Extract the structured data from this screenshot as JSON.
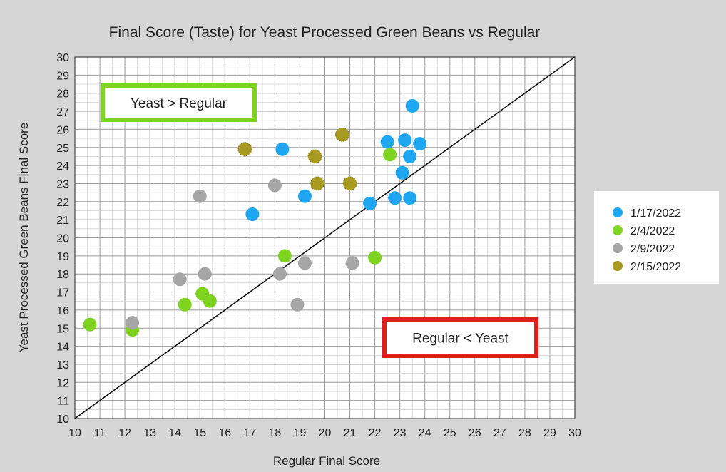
{
  "chart_data": {
    "type": "scatter",
    "title": "Final Score (Taste) for Yeast Processed Green Beans vs Regular",
    "xlabel": "Regular Final Score",
    "ylabel": "Yeast Processed Green Beans Final Score",
    "xlim": [
      10,
      30
    ],
    "ylim": [
      10,
      30
    ],
    "xticks": [
      10,
      11,
      12,
      13,
      14,
      15,
      16,
      17,
      18,
      19,
      20,
      21,
      22,
      23,
      24,
      25,
      26,
      27,
      28,
      29,
      30
    ],
    "yticks": [
      10,
      11,
      12,
      13,
      14,
      15,
      16,
      17,
      18,
      19,
      20,
      21,
      22,
      23,
      24,
      25,
      26,
      27,
      28,
      29,
      30
    ],
    "minor_grid_step": 0.5,
    "grid": true,
    "legend_position": "right",
    "reference_line": {
      "from": [
        10,
        10
      ],
      "to": [
        30,
        30
      ]
    },
    "annotations": [
      {
        "text": "Yeast > Regular",
        "color": "#7ed321"
      },
      {
        "text": "Regular < Yeast",
        "color": "#e02020"
      }
    ],
    "series": [
      {
        "name": "1/17/2022",
        "color": "#1ea6f0",
        "points": [
          [
            17.1,
            21.3
          ],
          [
            18.3,
            24.9
          ],
          [
            19.2,
            22.3
          ],
          [
            21.8,
            21.9
          ],
          [
            22.5,
            25.3
          ],
          [
            22.8,
            22.2
          ],
          [
            23.2,
            25.4
          ],
          [
            23.4,
            22.2
          ],
          [
            23.1,
            23.6
          ],
          [
            23.4,
            24.5
          ],
          [
            23.8,
            25.2
          ],
          [
            23.5,
            27.3
          ]
        ]
      },
      {
        "name": "2/4/2022",
        "color": "#7ed321",
        "points": [
          [
            10.6,
            15.2
          ],
          [
            12.3,
            14.9
          ],
          [
            14.4,
            16.3
          ],
          [
            15.1,
            16.9
          ],
          [
            15.4,
            16.5
          ],
          [
            18.4,
            19.0
          ],
          [
            22.0,
            18.9
          ],
          [
            22.6,
            24.6
          ]
        ]
      },
      {
        "name": "2/9/2022",
        "color": "#a6a6a6",
        "points": [
          [
            12.3,
            15.3
          ],
          [
            14.2,
            17.7
          ],
          [
            15.0,
            22.3
          ],
          [
            15.2,
            18.0
          ],
          [
            18.0,
            22.9
          ],
          [
            18.2,
            18.0
          ],
          [
            18.9,
            16.3
          ],
          [
            19.2,
            18.6
          ],
          [
            21.1,
            18.6
          ]
        ]
      },
      {
        "name": "2/15/2022",
        "color": "#a89a20",
        "points": [
          [
            16.8,
            24.9
          ],
          [
            19.6,
            24.5
          ],
          [
            19.7,
            23.0
          ],
          [
            20.7,
            25.7
          ],
          [
            21.0,
            23.0
          ]
        ]
      }
    ]
  }
}
